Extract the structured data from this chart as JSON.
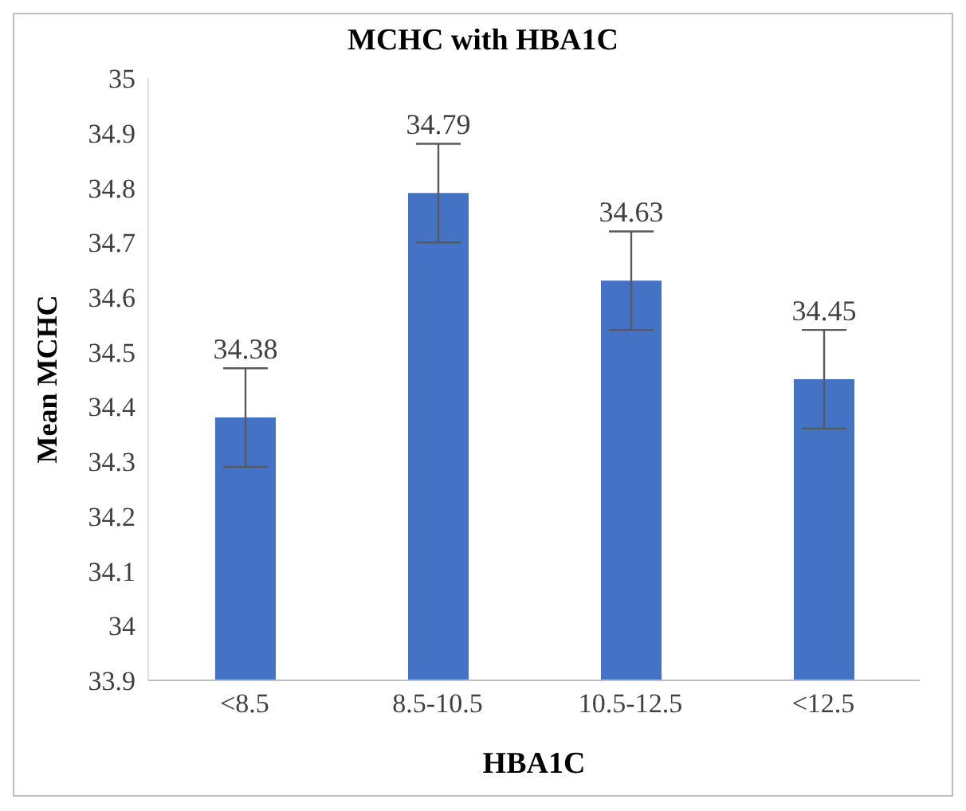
{
  "chart_data": {
    "type": "bar",
    "title": "MCHC with HBA1C",
    "xlabel": "HBA1C",
    "ylabel": "Mean MCHC",
    "categories": [
      "<8.5",
      "8.5-10.5",
      "10.5-12.5",
      "<12.5"
    ],
    "values": [
      34.38,
      34.79,
      34.63,
      34.45
    ],
    "errors": [
      0.09,
      0.09,
      0.09,
      0.09
    ],
    "color": "#4472c4",
    "ylim": [
      33.9,
      35
    ],
    "yticks": [
      33.9,
      34,
      34.1,
      34.2,
      34.3,
      34.4,
      34.5,
      34.6,
      34.7,
      34.8,
      34.9,
      35
    ],
    "data_labels": true,
    "grid": false
  }
}
